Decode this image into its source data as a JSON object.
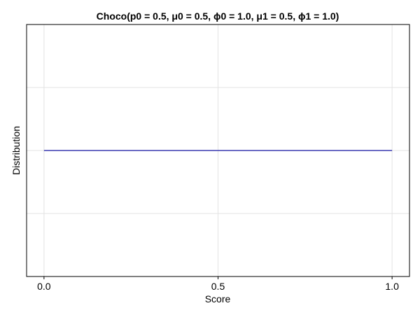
{
  "chart_data": {
    "type": "line",
    "title": "Choco(p0 = 0.5, μ0 = 0.5, ϕ0 = 1.0, μ1 = 0.5, ϕ1 = 1.0)",
    "xlabel": "Score",
    "ylabel": "Distribution",
    "xlim": [
      -0.05,
      1.05
    ],
    "ylim": [
      0.0,
      2.0
    ],
    "xticks": [
      {
        "value": 0.0,
        "label": "0.0"
      },
      {
        "value": 0.5,
        "label": "0.5"
      },
      {
        "value": 1.0,
        "label": "1.0"
      }
    ],
    "yticks": [
      0.5,
      1.0,
      1.5
    ],
    "grid": true,
    "legend": "none",
    "series": [
      {
        "color": "#3a3ab0",
        "x": [
          0.0,
          1.0
        ],
        "y": [
          1.0,
          1.0
        ]
      }
    ]
  }
}
